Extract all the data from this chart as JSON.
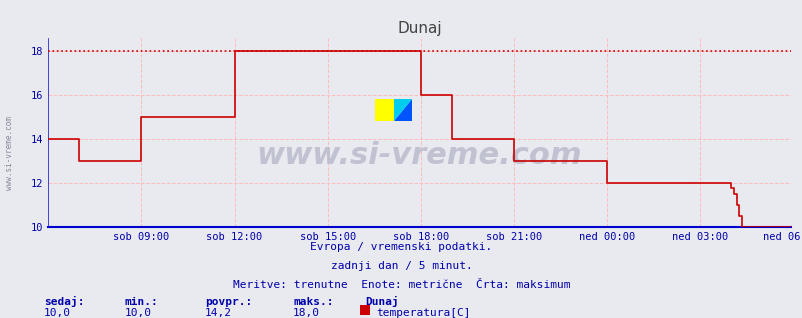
{
  "title": "Dunaj",
  "fig_bg_color": "#e8eaf0",
  "plot_bg_color": "#e8eaf0",
  "line_color": "#cc0000",
  "grid_color": "#ffbbbb",
  "axis_color": "#0000cc",
  "text_color": "#0000aa",
  "yticks": [
    10,
    12,
    14,
    16,
    18
  ],
  "ylim": [
    10,
    18.6
  ],
  "xlim": [
    0,
    287
  ],
  "xtick_labels": [
    "sob 09:00",
    "sob 12:00",
    "sob 15:00",
    "sob 18:00",
    "sob 21:00",
    "ned 00:00",
    "ned 03:00",
    "ned 06:00"
  ],
  "xtick_positions": [
    36,
    72,
    108,
    144,
    180,
    216,
    252,
    287
  ],
  "max_line_y": 18,
  "subtitle1": "Evropa / vremenski podatki.",
  "subtitle2": "zadnji dan / 5 minut.",
  "subtitle3": "Meritve: trenutne  Enote: metrične  Črta: maksimum",
  "label_sedaj": "sedaj:",
  "label_min": "min.:",
  "label_povpr": "povpr.:",
  "label_maks": "maks.:",
  "val_sedaj": "10,0",
  "val_min": "10,0",
  "val_povpr": "14,2",
  "val_maks": "18,0",
  "legend_label": "Dunaj",
  "legend_sublabel": "temperatura[C]",
  "watermark": "www.si-vreme.com",
  "left_watermark": "www.si-vreme.com",
  "data_y": [
    14,
    14,
    14,
    14,
    14,
    14,
    14,
    14,
    14,
    14,
    14,
    14,
    13,
    13,
    13,
    13,
    13,
    13,
    13,
    13,
    13,
    13,
    13,
    13,
    13,
    13,
    13,
    13,
    13,
    13,
    13,
    13,
    13,
    13,
    13,
    13,
    15,
    15,
    15,
    15,
    15,
    15,
    15,
    15,
    15,
    15,
    15,
    15,
    15,
    15,
    15,
    15,
    15,
    15,
    15,
    15,
    15,
    15,
    15,
    15,
    15,
    15,
    15,
    15,
    15,
    15,
    15,
    15,
    15,
    15,
    15,
    15,
    18,
    18,
    18,
    18,
    18,
    18,
    18,
    18,
    18,
    18,
    18,
    18,
    18,
    18,
    18,
    18,
    18,
    18,
    18,
    18,
    18,
    18,
    18,
    18,
    18,
    18,
    18,
    18,
    18,
    18,
    18,
    18,
    18,
    18,
    18,
    18,
    18,
    18,
    18,
    18,
    18,
    18,
    18,
    18,
    18,
    18,
    18,
    18,
    18,
    18,
    18,
    18,
    18,
    18,
    18,
    18,
    18,
    18,
    18,
    18,
    18,
    18,
    18,
    18,
    18,
    18,
    18,
    18,
    18,
    18,
    18,
    18,
    16,
    16,
    16,
    16,
    16,
    16,
    16,
    16,
    16,
    16,
    16,
    16,
    14,
    14,
    14,
    14,
    14,
    14,
    14,
    14,
    14,
    14,
    14,
    14,
    14,
    14,
    14,
    14,
    14,
    14,
    14,
    14,
    14,
    14,
    14,
    14,
    13,
    13,
    13,
    13,
    13,
    13,
    13,
    13,
    13,
    13,
    13,
    13,
    13,
    13,
    13,
    13,
    13,
    13,
    13,
    13,
    13,
    13,
    13,
    13,
    13,
    13,
    13,
    13,
    13,
    13,
    13,
    13,
    13,
    13,
    13,
    13,
    12,
    12,
    12,
    12,
    12,
    12,
    12,
    12,
    12,
    12,
    12,
    12,
    12,
    12,
    12,
    12,
    12,
    12,
    12,
    12,
    12,
    12,
    12,
    12,
    12,
    12,
    12,
    12,
    12,
    12,
    12,
    12,
    12,
    12,
    12,
    12,
    12,
    12,
    12,
    12,
    12,
    12,
    12,
    12,
    12,
    12,
    12,
    12,
    11.8,
    11.5,
    11,
    10.5,
    10,
    10,
    10,
    10,
    10,
    10,
    10,
    10,
    10,
    10,
    10,
    10,
    10,
    10,
    10,
    10,
    10,
    10,
    10,
    10
  ]
}
